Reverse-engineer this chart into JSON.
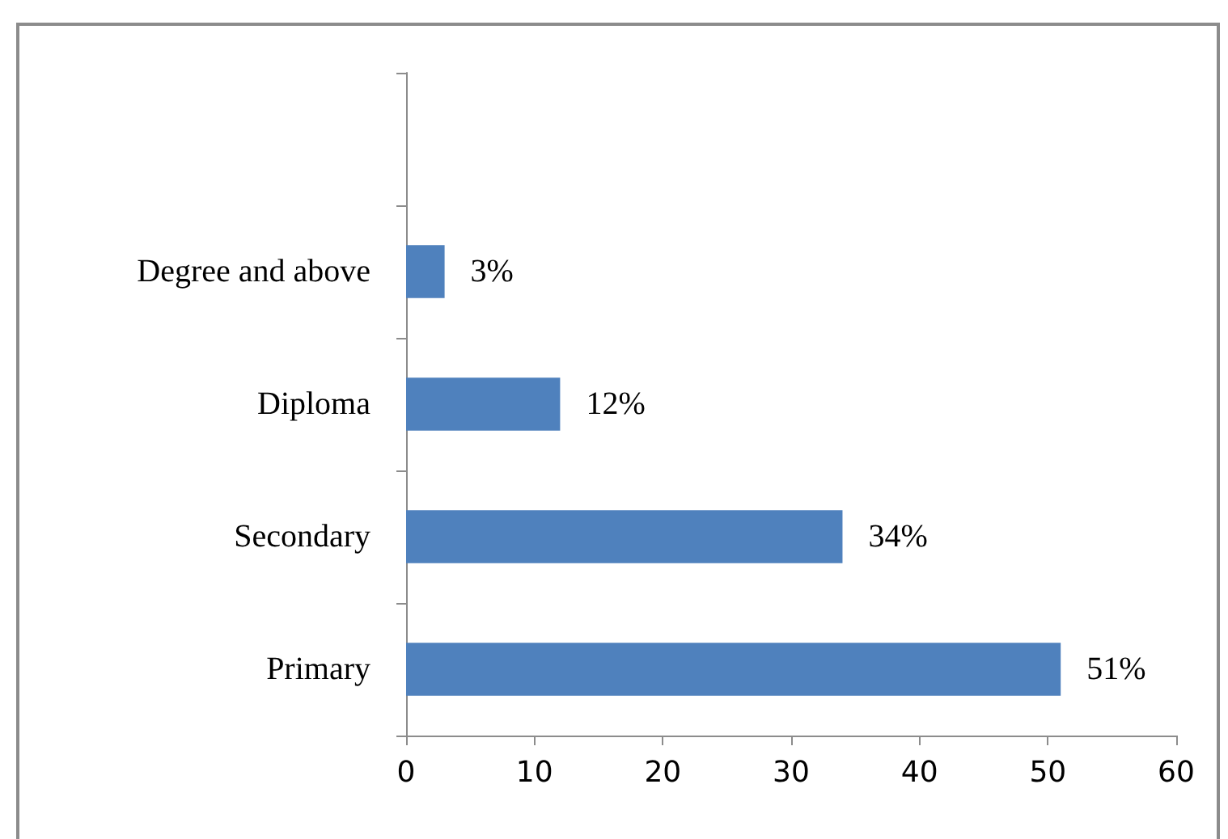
{
  "chart_data": {
    "type": "bar",
    "orientation": "horizontal",
    "categories": [
      null,
      "Degree and above",
      "Diploma",
      "Secondary",
      "Primary"
    ],
    "values": [
      null,
      3,
      12,
      34,
      51
    ],
    "value_labels": [
      null,
      "3%",
      "12%",
      "34%",
      "51%"
    ],
    "color": "#4f81bd",
    "xlim": [
      0,
      60
    ],
    "xticks": [
      0,
      10,
      20,
      30,
      40,
      50,
      60
    ],
    "grid": false
  }
}
